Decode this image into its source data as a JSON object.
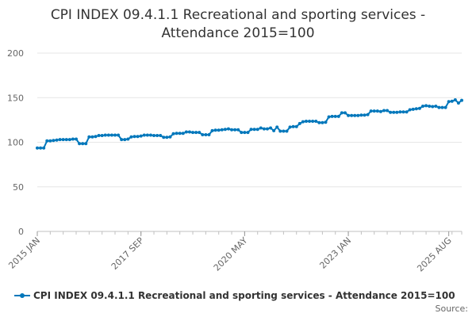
{
  "chart_data": {
    "type": "line",
    "title_lines": [
      "CPI INDEX 09.4.1.1 Recreational and sporting services -",
      "Attendance 2015=100"
    ],
    "xlabel": "",
    "ylabel": "",
    "ylim": [
      0,
      200
    ],
    "yticks": [
      "0",
      "50",
      "100",
      "150",
      "200"
    ],
    "xtick_labels": [
      "2015 JAN",
      "2017 SEP",
      "2020 MAY",
      "2023 JAN",
      "2025 AUG"
    ],
    "grid": true,
    "legend_position": "bottom-left",
    "color": "#0077bb",
    "series": [
      {
        "name": "CPI INDEX 09.4.1.1 Recreational and sporting services - Attendance 2015=100",
        "x_start": "2015-01",
        "values": [
          93.5,
          93.5,
          93.5,
          101.5,
          101.5,
          102,
          102.5,
          103,
          103,
          103,
          103,
          103.5,
          103.5,
          98.5,
          98.5,
          98.5,
          106,
          106,
          106.5,
          107.5,
          107.5,
          108,
          108,
          108,
          108,
          108,
          103,
          103,
          103.5,
          106,
          106.5,
          106.5,
          107,
          108,
          108,
          108,
          107.5,
          107.5,
          107.5,
          105.5,
          105.5,
          106,
          109.5,
          110,
          110,
          110,
          111.5,
          111.5,
          111,
          111,
          111,
          108.5,
          108.5,
          108.5,
          113,
          113.5,
          113.5,
          114,
          114.5,
          115,
          114,
          114,
          114,
          111,
          111,
          111,
          114.5,
          114.5,
          114.5,
          116,
          115,
          115,
          116,
          113,
          117,
          112.5,
          112.5,
          112.5,
          117,
          117.5,
          117.5,
          121,
          123,
          123.5,
          123.5,
          123.5,
          123.5,
          122,
          122,
          122.5,
          128.5,
          129,
          129,
          129,
          133,
          133,
          130,
          130,
          130,
          130,
          130.5,
          130.5,
          131,
          135,
          135,
          135,
          134.5,
          135.5,
          135.5,
          133.5,
          133.5,
          133.5,
          134,
          134,
          134,
          136.5,
          137,
          137.5,
          138,
          140.5,
          141,
          140.5,
          140,
          140.5,
          139,
          139,
          139,
          145.5,
          146,
          147.5,
          144,
          147
        ]
      }
    ]
  },
  "source_label": "Source:"
}
